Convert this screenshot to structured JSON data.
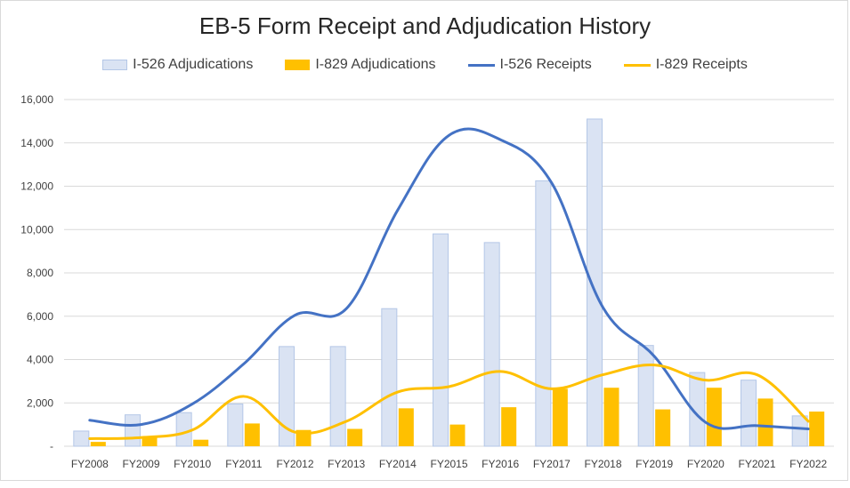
{
  "chart_data": {
    "type": "bar",
    "title": "EB-5 Form Receipt and Adjudication History",
    "categories": [
      "FY2008",
      "FY2009",
      "FY2010",
      "FY2011",
      "FY2012",
      "FY2013",
      "FY2014",
      "FY2015",
      "FY2016",
      "FY2017",
      "FY2018",
      "FY2019",
      "FY2020",
      "FY2021",
      "FY2022"
    ],
    "ylim": [
      0,
      16000
    ],
    "yticks": [
      0,
      2000,
      4000,
      6000,
      8000,
      10000,
      12000,
      14000,
      16000
    ],
    "ytick_labels": [
      "-",
      "2,000",
      "4,000",
      "6,000",
      "8,000",
      "10,000",
      "12,000",
      "14,000",
      "16,000"
    ],
    "grid": true,
    "legend_position": "top",
    "series": [
      {
        "name": "I-526 Adjudications",
        "kind": "bar",
        "color": "#dae3f3",
        "stroke": "#b4c7e7",
        "values": [
          700,
          1450,
          1550,
          1950,
          4600,
          4600,
          6350,
          9800,
          9400,
          12250,
          15100,
          4650,
          3400,
          3050,
          1400
        ]
      },
      {
        "name": "I-829 Adjudications",
        "kind": "bar",
        "color": "#ffc000",
        "stroke": "#ffc000",
        "values": [
          200,
          400,
          300,
          1050,
          750,
          800,
          1750,
          1000,
          1800,
          2650,
          2700,
          1700,
          2700,
          2200,
          1600
        ]
      },
      {
        "name": "I-526 Receipts",
        "kind": "line",
        "color": "#4472c4",
        "values": [
          1200,
          1000,
          1950,
          3800,
          6050,
          6350,
          10900,
          14350,
          14150,
          12150,
          6400,
          4150,
          1100,
          950,
          800
        ]
      },
      {
        "name": "I-829 Receipts",
        "kind": "line",
        "color": "#ffc000",
        "values": [
          350,
          400,
          750,
          2300,
          650,
          1150,
          2500,
          2750,
          3450,
          2650,
          3300,
          3750,
          3050,
          3300,
          1150
        ]
      }
    ]
  }
}
